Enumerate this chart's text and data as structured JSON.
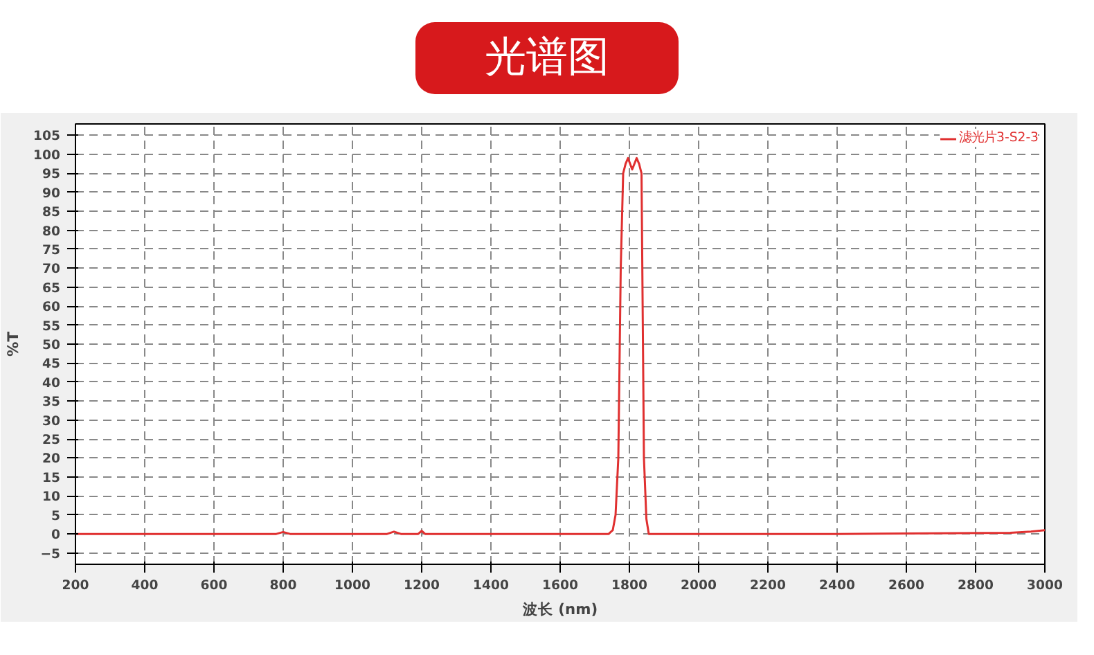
{
  "chart_data": {
    "type": "line",
    "title": "光谱图",
    "xlabel": "波长 (nm)",
    "ylabel": "%T",
    "xlim": [
      200,
      3000
    ],
    "ylim": [
      -8,
      108
    ],
    "xticks": [
      200,
      400,
      600,
      800,
      1000,
      1200,
      1400,
      1600,
      1800,
      2000,
      2200,
      2400,
      2600,
      2800,
      3000
    ],
    "yticks": [
      -5,
      0,
      5,
      10,
      15,
      20,
      25,
      30,
      35,
      40,
      45,
      50,
      55,
      60,
      65,
      70,
      75,
      80,
      85,
      90,
      95,
      100,
      105
    ],
    "grid": true,
    "legend": "top right",
    "line_style": "solid",
    "marker": "none",
    "series": [
      {
        "name": "滤光片3-S2-3",
        "color": "#e03030",
        "x": [
          200,
          780,
          800,
          820,
          1100,
          1120,
          1140,
          1190,
          1200,
          1210,
          1740,
          1752,
          1760,
          1768,
          1775,
          1782,
          1789,
          1796,
          1808,
          1821,
          1828,
          1835,
          1842,
          1849,
          1856,
          1870,
          2400,
          2900,
          2960,
          3000
        ],
        "values": [
          0,
          0,
          0.5,
          0,
          0,
          0.6,
          0,
          0,
          0.8,
          0,
          0,
          1,
          5,
          20,
          70,
          95,
          97.5,
          99,
          96,
          99,
          97.5,
          95,
          20,
          4,
          0,
          0,
          0,
          0.3,
          0.6,
          1
        ]
      }
    ]
  }
}
